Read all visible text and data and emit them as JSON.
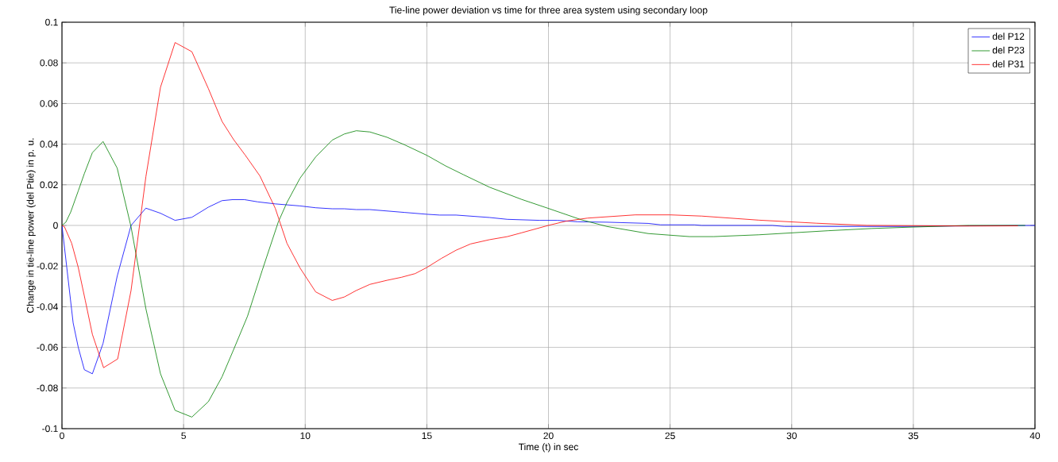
{
  "chart_data": {
    "type": "line",
    "title": "Tie-line power deviation vs time for three area system using secondary loop",
    "xlabel": "Time (t) in sec",
    "ylabel": "Change in tie-line power (del Ptie) in p. u.",
    "xlim": [
      0,
      40
    ],
    "ylim": [
      -0.1,
      0.1
    ],
    "xticks": [
      0,
      5,
      10,
      15,
      20,
      25,
      30,
      35,
      40
    ],
    "yticks": [
      -0.1,
      -0.08,
      -0.06,
      -0.04,
      -0.02,
      0,
      0.02,
      0.04,
      0.06,
      0.08,
      0.1
    ],
    "grid": true,
    "legend": "top right",
    "line_style": "solid",
    "marker": "none",
    "series": [
      {
        "name": "del P12",
        "color": "#0000ff",
        "x": [
          0,
          0.46,
          0.67,
          0.92,
          1.25,
          1.69,
          2.27,
          2.84,
          3.45,
          4.05,
          4.65,
          5.34,
          6.02,
          6.58,
          7.02,
          7.5,
          8.05,
          8.77,
          9.79,
          10.43,
          11.11,
          11.61,
          12.1,
          12.66,
          14.08,
          15,
          15.53,
          16.2,
          17.58,
          18.31,
          19.63,
          20.36,
          21.2,
          22.4,
          24.1,
          24.6,
          26,
          26.3,
          29.2,
          29.7,
          35,
          37.3,
          40
        ],
        "values": [
          0,
          -0.048,
          -0.06,
          -0.071,
          -0.073,
          -0.058,
          -0.025,
          0,
          0.0085,
          0.006,
          0.0025,
          0.004,
          0.009,
          0.0122,
          0.0127,
          0.0127,
          0.0116,
          0.0106,
          0.0096,
          0.0087,
          0.0082,
          0.0082,
          0.0078,
          0.0078,
          0.0064,
          0.0055,
          0.0051,
          0.0051,
          0.0039,
          0.003,
          0.0025,
          0.0025,
          0.0018,
          0.0016,
          0.001,
          0.0003,
          0.0003,
          0,
          0,
          -0.0005,
          -0.0005,
          -0.0002,
          0
        ]
      },
      {
        "name": "del P23",
        "color": "#008000",
        "x": [
          0,
          0.16,
          0.36,
          0.67,
          0.92,
          1.25,
          1.69,
          2.27,
          2.84,
          3.45,
          4.05,
          4.65,
          5.34,
          6.02,
          6.58,
          7.06,
          7.63,
          8.23,
          8.89,
          9.25,
          9.79,
          10.43,
          11.11,
          11.61,
          12.1,
          12.66,
          13.36,
          14.08,
          15,
          15.77,
          16.5,
          17.58,
          18.9,
          19.99,
          21.35,
          22.4,
          24.1,
          25.8,
          26.8,
          28.65,
          31.5,
          33.3,
          35,
          37.3,
          39.6
        ],
        "values": [
          0,
          0.0016,
          0.0066,
          0.017,
          0.0255,
          0.0358,
          0.0413,
          0.0282,
          -0.0007,
          -0.041,
          -0.073,
          -0.091,
          -0.0943,
          -0.0867,
          -0.0745,
          -0.061,
          -0.0446,
          -0.0222,
          0.0016,
          0.0113,
          0.0233,
          0.0337,
          0.042,
          0.045,
          0.0466,
          0.046,
          0.0434,
          0.0397,
          0.0345,
          0.0293,
          0.025,
          0.0188,
          0.0128,
          0.0084,
          0.0028,
          -0.0005,
          -0.004,
          -0.0055,
          -0.0055,
          -0.0046,
          -0.0026,
          -0.0015,
          -0.0008,
          0,
          0
        ]
      },
      {
        "name": "del P31",
        "color": "#ff0000",
        "x": [
          0,
          0.1,
          0.4,
          0.67,
          0.96,
          1.25,
          1.71,
          2.29,
          2.84,
          3.45,
          4.05,
          4.65,
          5.34,
          6.02,
          6.58,
          7.06,
          7.54,
          8.14,
          8.77,
          9.25,
          9.79,
          10.43,
          11.11,
          11.61,
          12.1,
          12.66,
          13.36,
          13.96,
          14.52,
          15,
          15.59,
          16.2,
          16.8,
          17.58,
          18.31,
          18.9,
          19.99,
          20.72,
          21.6,
          23.57,
          25,
          26.3,
          28.65,
          31,
          33.1,
          37.3,
          39.3
        ],
        "values": [
          0,
          -0.0006,
          -0.0088,
          -0.0207,
          -0.037,
          -0.0536,
          -0.07,
          -0.0657,
          -0.032,
          0.024,
          0.068,
          0.09,
          0.0855,
          0.0673,
          0.0512,
          0.0422,
          0.0345,
          0.0243,
          0.0084,
          -0.0088,
          -0.021,
          -0.0327,
          -0.0369,
          -0.0352,
          -0.032,
          -0.029,
          -0.027,
          -0.0255,
          -0.0237,
          -0.0207,
          -0.0163,
          -0.0122,
          -0.0091,
          -0.007,
          -0.0055,
          -0.0036,
          0,
          0.0021,
          0.0036,
          0.0052,
          0.0052,
          0.0046,
          0.0026,
          0.0011,
          0,
          -0.0003,
          -0.0002
        ]
      }
    ]
  }
}
